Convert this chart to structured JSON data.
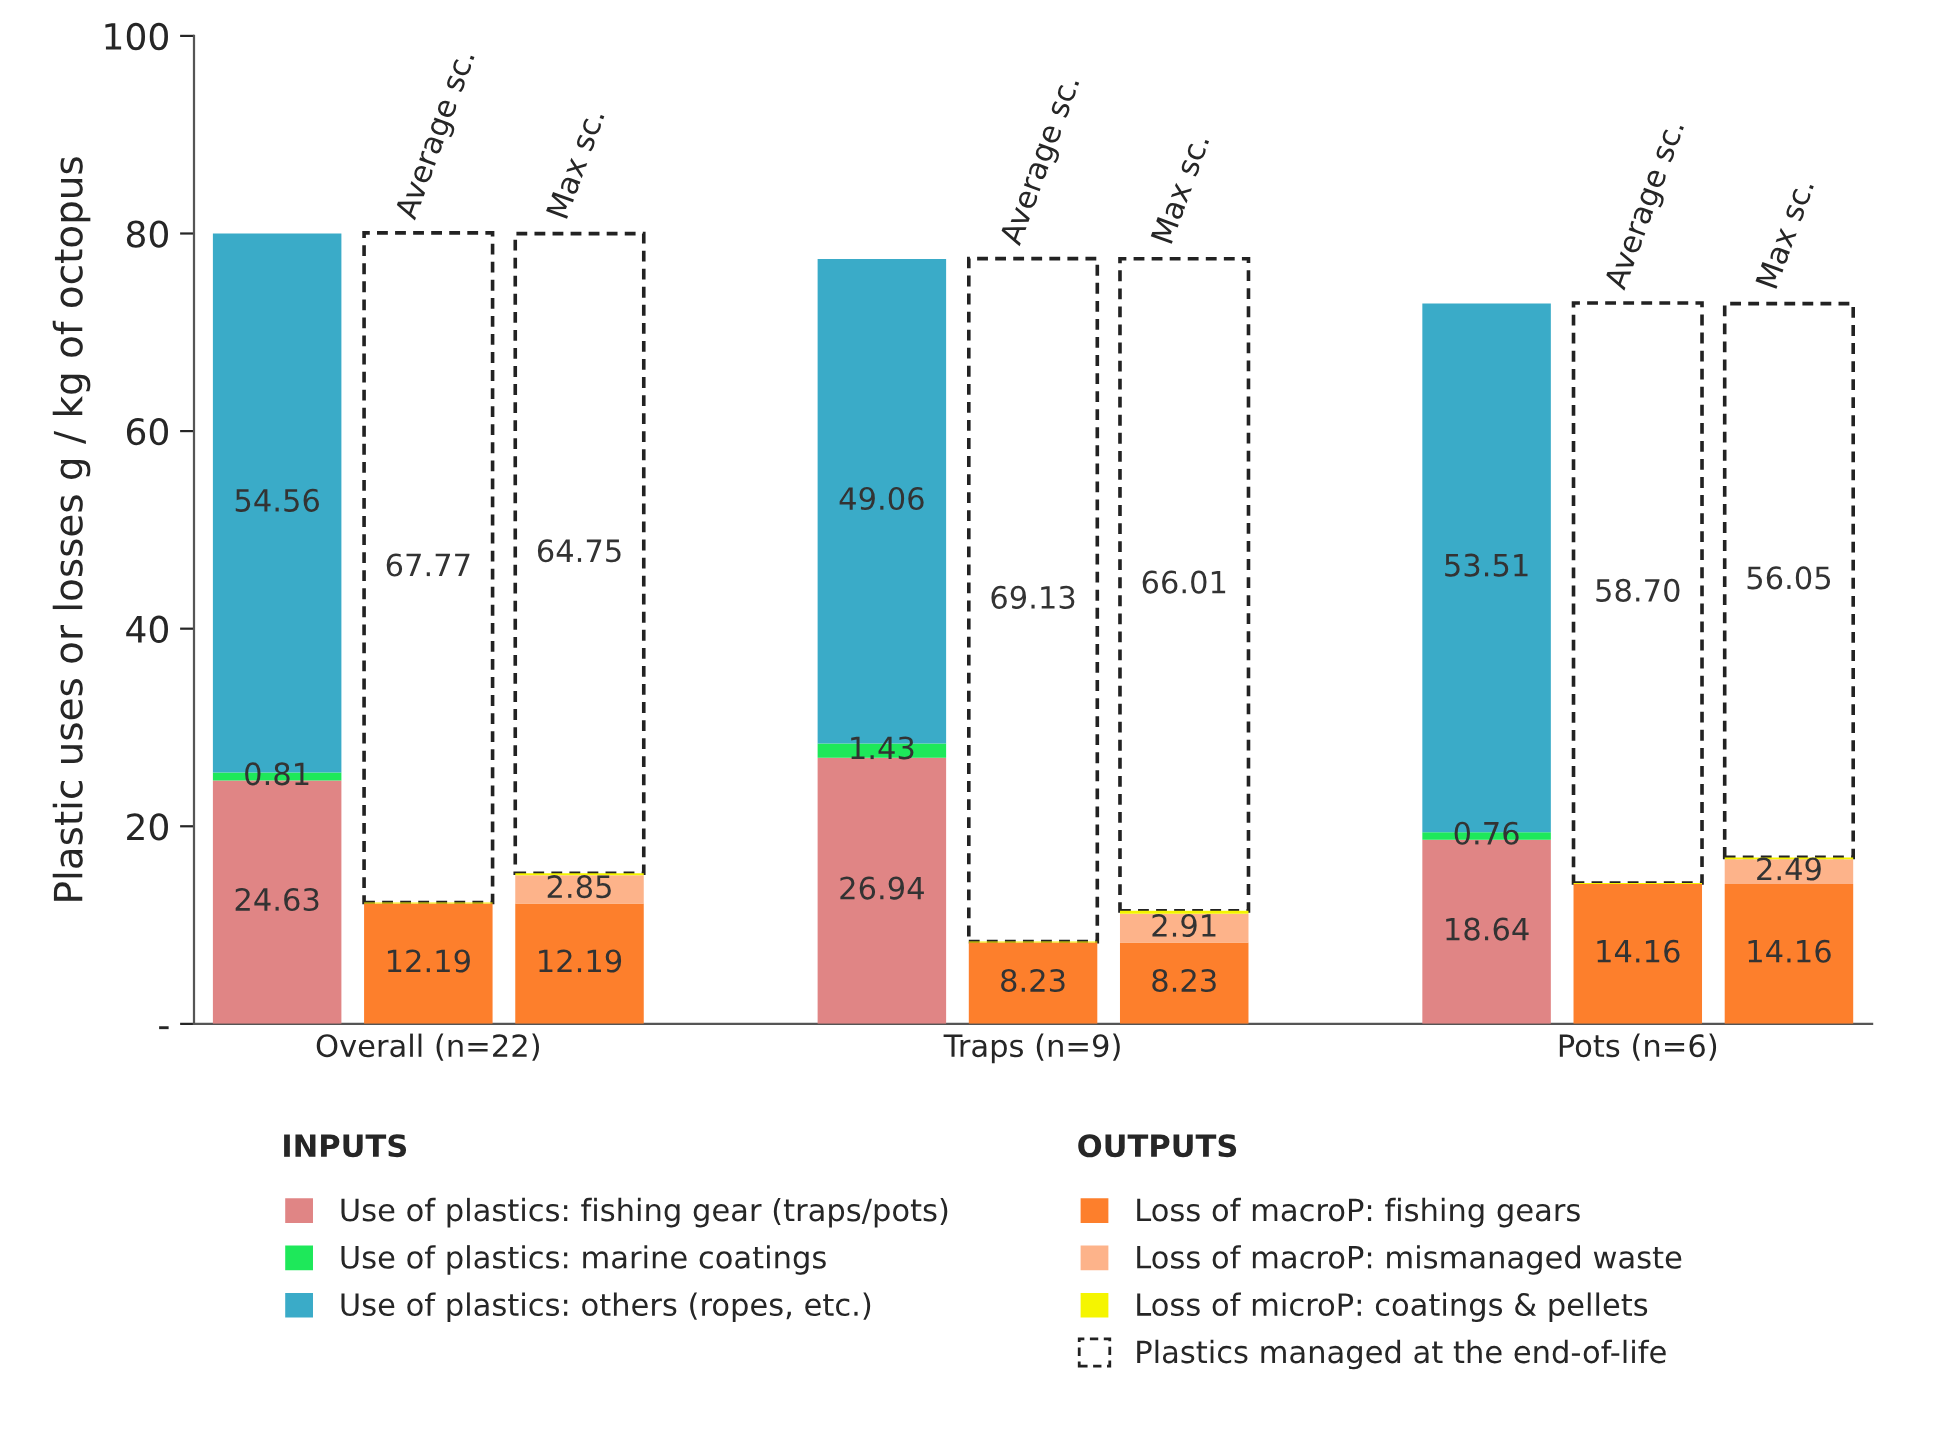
{
  "chart_data": {
    "type": "bar",
    "stacked": true,
    "ylabel": "Plastic uses or losses g / kg of octopus",
    "categories": [
      null,
      "Overall (n=22)",
      null,
      null,
      null,
      "Traps (n=9)",
      null,
      null,
      null,
      "Pots (n=6)",
      null
    ],
    "ylim": [
      0,
      100
    ],
    "yticks": [
      {
        "value": 0,
        "label": "-"
      },
      20,
      40,
      60,
      80,
      100
    ],
    "grid": false,
    "legend": "bottom",
    "annotations": [
      "Average sc.",
      "Max sc.",
      "Average sc.",
      "Max sc.",
      "Average sc.",
      "Max sc.",
      "INPUTS",
      "OUTPUTS"
    ],
    "series": [
      {
        "name": "Use of plastics: fishing gear (traps/pots)",
        "color": "#e08585",
        "values": [
          24.63,
          null,
          null,
          null,
          26.94,
          null,
          null,
          null,
          18.64,
          null,
          null
        ],
        "value_labels": [
          "24.63",
          null,
          null,
          null,
          "26.94",
          null,
          null,
          null,
          "18.64",
          null,
          null
        ]
      },
      {
        "name": "Use of plastics: marine coatings",
        "color": "#1ee85a",
        "values": [
          0.81,
          null,
          null,
          null,
          1.43,
          null,
          null,
          null,
          0.76,
          null,
          null
        ],
        "value_labels": [
          "0.81",
          null,
          null,
          null,
          "1.43",
          null,
          null,
          null,
          "0.76",
          null,
          null
        ]
      },
      {
        "name": "Use of plastics: others (ropes, etc.)",
        "color": "#3aabc8",
        "values": [
          54.56,
          null,
          null,
          null,
          49.06,
          null,
          null,
          null,
          53.51,
          null,
          null
        ],
        "value_labels": [
          "54.56",
          null,
          null,
          null,
          "49.06",
          null,
          null,
          null,
          "53.51",
          null,
          null
        ]
      },
      {
        "name": "Loss of macroP: fishing gears",
        "color": "#fd7f2c",
        "values": [
          null,
          12.19,
          12.19,
          null,
          null,
          8.23,
          8.23,
          null,
          null,
          14.16,
          14.16
        ],
        "value_labels": [
          null,
          "12.19",
          "12.19",
          null,
          null,
          "8.23",
          "8.23",
          null,
          null,
          "14.16",
          "14.16"
        ]
      },
      {
        "name": "Loss of macroP: mismanaged waste",
        "color": "#fdb38a",
        "values": [
          null,
          null,
          2.85,
          null,
          null,
          null,
          2.91,
          null,
          null,
          null,
          2.49
        ],
        "value_labels": [
          null,
          null,
          "2.85",
          null,
          null,
          null,
          "2.91",
          null,
          null,
          null,
          "2.49"
        ]
      },
      {
        "name": "Loss of microP: coatings & pellets",
        "color": "#f5f500",
        "values": [
          null,
          0.1,
          0.2,
          null,
          null,
          0.1,
          0.3,
          null,
          null,
          0.1,
          0.2
        ]
      },
      {
        "name": "Plastics managed at the end-of-life",
        "color": "#ffffff",
        "line_style": "dashed",
        "values": [
          null,
          67.77,
          64.75,
          null,
          null,
          69.13,
          66.01,
          null,
          null,
          58.7,
          56.05
        ],
        "value_labels": [
          null,
          "67.77",
          "64.75",
          null,
          null,
          "69.13",
          "66.01",
          null,
          null,
          "58.70",
          "56.05"
        ]
      }
    ]
  }
}
